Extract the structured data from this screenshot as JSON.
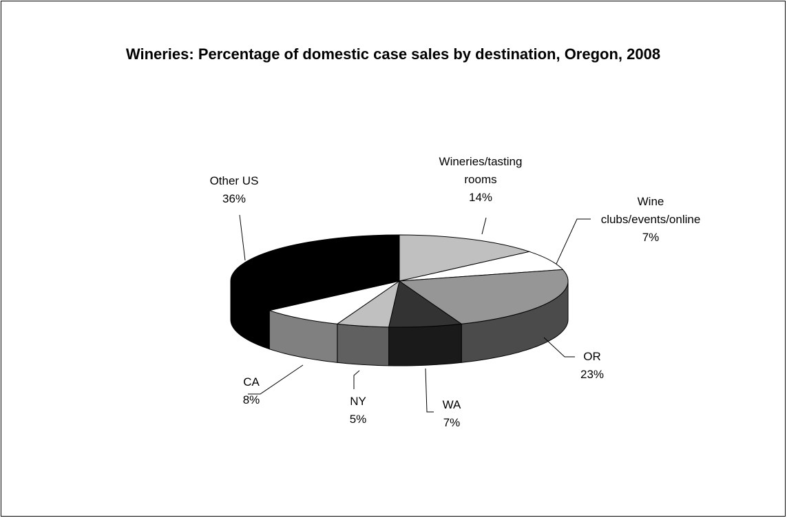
{
  "chart_data": {
    "type": "pie",
    "title": "Wineries: Percentage of domestic case sales by destination, Oregon, 2008",
    "categories": [
      "Wineries/tasting rooms",
      "Wine clubs/events/online",
      "OR",
      "WA",
      "NY",
      "CA",
      "Other US"
    ],
    "values": [
      14,
      7,
      23,
      7,
      5,
      8,
      36
    ],
    "value_labels": [
      "14%",
      "7%",
      "23%",
      "7%",
      "5%",
      "8%",
      "36%"
    ],
    "colors": [
      "#c0c0c0",
      "#ffffff",
      "#969696",
      "#333333",
      "#c0c0c0",
      "#ffffff",
      "#000000"
    ]
  }
}
